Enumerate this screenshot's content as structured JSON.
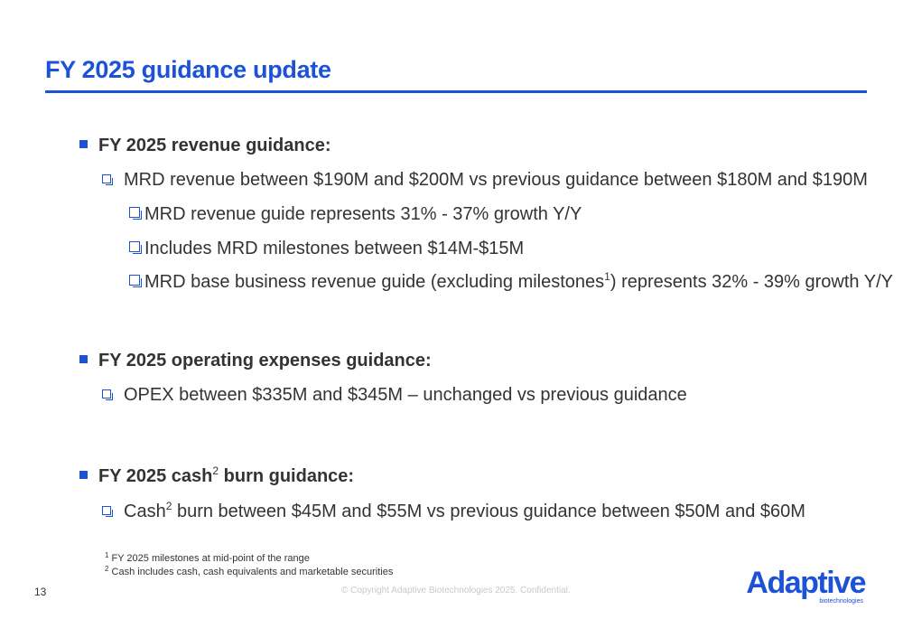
{
  "slide": {
    "title": "FY 2025 guidance update",
    "page_number": "13",
    "copyright": "© Copyright  Adaptive Biotechnologies 2025. Confidential.",
    "accent_color": "#1c52d6"
  },
  "sections": {
    "revenue": {
      "heading": "FY 2025 revenue guidance:",
      "item": "MRD revenue between $190M and $200M vs previous guidance between $180M and $190M",
      "subitems": {
        "a": "MRD revenue guide represents 31% - 37% growth Y/Y",
        "b": "Includes MRD milestones between $14M-$15M",
        "c_before": "MRD base business revenue guide (excluding milestones",
        "c_sup": "1",
        "c_after": ") represents 32% - 39% growth Y/Y"
      }
    },
    "opex": {
      "heading": "FY 2025 operating expenses guidance:",
      "item": "OPEX between $335M and $345M – unchanged vs previous guidance"
    },
    "cash": {
      "heading_before": "FY 2025 cash",
      "heading_sup": "2",
      "heading_after": " burn guidance:",
      "item_before": "Cash",
      "item_sup": "2",
      "item_after": " burn between $45M and $55M vs previous guidance between $50M and $60M"
    }
  },
  "footnotes": {
    "n1_mark": "1",
    "n1_text": " FY 2025 milestones at mid-point of the range",
    "n2_mark": "2",
    "n2_text": " Cash includes cash, cash equivalents and marketable securities"
  },
  "logo": {
    "word": "Adaptive",
    "sub": "biotechnologies"
  }
}
